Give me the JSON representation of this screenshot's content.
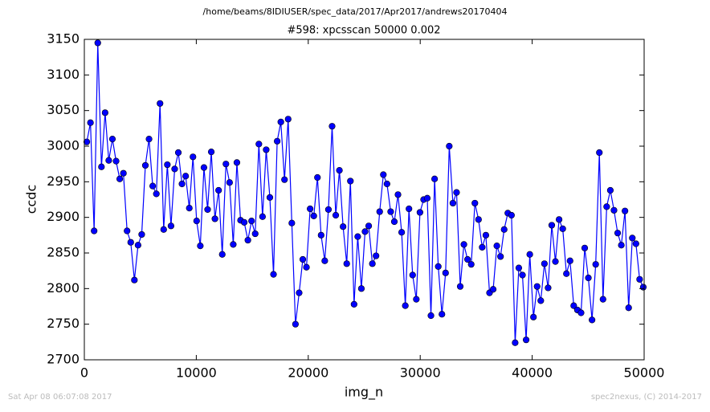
{
  "chart_data": {
    "type": "line",
    "suptitle": "/home/beams/8IDIUSER/spec_data/2017/Apr2017/andrews20170404",
    "title": "#598: xpcsscan 50000 0.002",
    "x_label": "img_n",
    "y_label": "ccdc",
    "footer_left": "Sat Apr 08 06:07:08 2017",
    "footer_right": "spec2nexus, (C) 2014-2017",
    "x": [
      220,
      547,
      874,
      1201,
      1528,
      1855,
      2182,
      2509,
      2836,
      3163,
      3490,
      3817,
      4144,
      4471,
      4798,
      5125,
      5452,
      5779,
      6106,
      6433,
      6760,
      7087,
      7414,
      7741,
      8068,
      8395,
      8722,
      9049,
      9376,
      9703,
      10030,
      10357,
      10684,
      11011,
      11338,
      11665,
      11992,
      12319,
      12646,
      12973,
      13300,
      13627,
      13954,
      14281,
      14608,
      14935,
      15262,
      15589,
      15916,
      16243,
      16570,
      16897,
      17224,
      17551,
      17878,
      18205,
      18532,
      18859,
      19186,
      19513,
      19840,
      20167,
      20494,
      20821,
      21148,
      21475,
      21802,
      22129,
      22456,
      22783,
      23110,
      23437,
      23764,
      24091,
      24418,
      24745,
      25072,
      25399,
      25726,
      26053,
      26380,
      26707,
      27034,
      27361,
      27688,
      28015,
      28342,
      28669,
      28996,
      29323,
      29650,
      29977,
      30304,
      30631,
      30958,
      31285,
      31612,
      31939,
      32266,
      32593,
      32920,
      33247,
      33574,
      33901,
      34228,
      34555,
      34882,
      35209,
      35536,
      35863,
      36190,
      36517,
      36844,
      37171,
      37498,
      37825,
      38152,
      38479,
      38806,
      39133,
      39460,
      39787,
      40114,
      40441,
      40768,
      41095,
      41422,
      41749,
      42076,
      42403,
      42730,
      43057,
      43384,
      43711,
      44038,
      44365,
      44692,
      45019,
      45346,
      45673,
      46000,
      46327,
      46654,
      46981,
      47308,
      47635,
      47962,
      48289,
      48616,
      48943,
      49270,
      49597,
      49924
    ],
    "series": [
      {
        "color": "#0000ff",
        "values": [
          3006,
          3033,
          2881,
          3145,
          2971,
          3047,
          2980,
          3010,
          2979,
          2954,
          2962,
          2881,
          2865,
          2812,
          2861,
          2876,
          2973,
          3010,
          2944,
          2933,
          3060,
          2883,
          2974,
          2888,
          2968,
          2991,
          2947,
          2958,
          2913,
          2985,
          2895,
          2860,
          2970,
          2911,
          2992,
          2898,
          2938,
          2848,
          2975,
          2949,
          2862,
          2977,
          2896,
          2893,
          2868,
          2895,
          2877,
          3003,
          2901,
          2995,
          2928,
          2820,
          3007,
          3034,
          2953,
          3038,
          2892,
          2750,
          2794,
          2841,
          2830,
          2912,
          2902,
          2956,
          2875,
          2839,
          2911,
          3028,
          2903,
          2966,
          2887,
          2835,
          2951,
          2778,
          2873,
          2800,
          2880,
          2888,
          2835,
          2846,
          2908,
          2960,
          2947,
          2908,
          2894,
          2932,
          2879,
          2776,
          2912,
          2819,
          2785,
          2907,
          2925,
          2927,
          2762,
          2954,
          2831,
          2764,
          2822,
          3000,
          2920,
          2935,
          2803,
          2862,
          2841,
          2834,
          2920,
          2897,
          2858,
          2875,
          2794,
          2799,
          2860,
          2845,
          2883,
          2906,
          2903,
          2724,
          2829,
          2819,
          2728,
          2848,
          2760,
          2803,
          2783,
          2835,
          2801,
          2889,
          2838,
          2897,
          2884,
          2821,
          2839,
          2776,
          2770,
          2766,
          2857,
          2815,
          2756,
          2834,
          2991,
          2785,
          2915,
          2938,
          2910,
          2878,
          2861,
          2909,
          2773,
          2871,
          2863,
          2813,
          2802
        ]
      }
    ],
    "xlim": [
      0,
      50000
    ],
    "xticks": [
      0,
      10000,
      20000,
      30000,
      40000,
      50000
    ],
    "ylim": [
      2700,
      3150
    ],
    "yticks": [
      2700,
      2750,
      2800,
      2850,
      2900,
      2950,
      3000,
      3050,
      3100,
      3150
    ],
    "grid": false
  }
}
